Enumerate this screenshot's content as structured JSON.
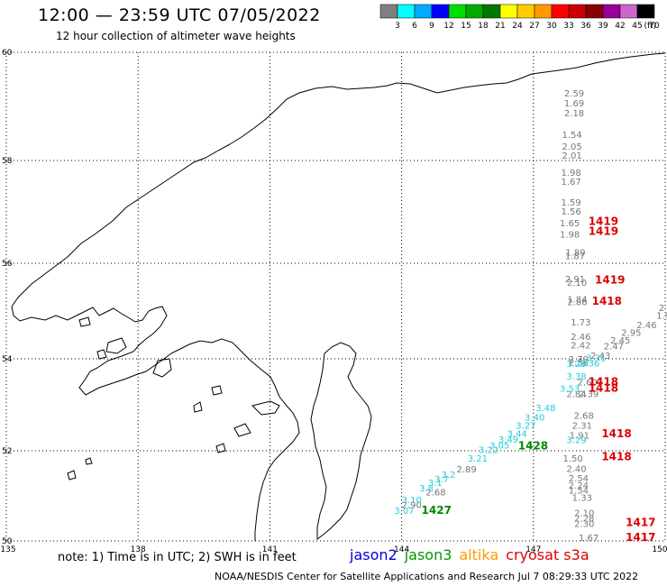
{
  "header": {
    "title": "12:00 — 23:59 UTC 07/05/2022",
    "subtitle": "12 hour collection of altimeter wave heights"
  },
  "legend": {
    "unit": "(ft)",
    "bins": [
      {
        "label": "3",
        "color": "#7f7f7f"
      },
      {
        "label": "6",
        "color": "#00ffff"
      },
      {
        "label": "9",
        "color": "#00aaff"
      },
      {
        "label": "12",
        "color": "#0000ff"
      },
      {
        "label": "15",
        "color": "#00dd00"
      },
      {
        "label": "18",
        "color": "#00aa00"
      },
      {
        "label": "21",
        "color": "#007700"
      },
      {
        "label": "24",
        "color": "#ffff00"
      },
      {
        "label": "27",
        "color": "#ffcc00"
      },
      {
        "label": "30",
        "color": "#ff9900"
      },
      {
        "label": "33",
        "color": "#ff0000"
      },
      {
        "label": "36",
        "color": "#cc0000"
      },
      {
        "label": "39",
        "color": "#880000"
      },
      {
        "label": "42",
        "color": "#990099"
      },
      {
        "label": "45",
        "color": "#cc66cc"
      },
      {
        "label": "70",
        "color": "#000000"
      }
    ]
  },
  "axes": {
    "lon_ticks": [
      "135",
      "138",
      "141",
      "144",
      "147",
      "150"
    ],
    "lat_ticks": [
      "60",
      "58",
      "56",
      "54",
      "52",
      "50"
    ]
  },
  "observations": {
    "cryosat_gray": [
      {
        "v": "2.59",
        "lon": 147.7,
        "lat": 59.18
      },
      {
        "v": "1.69",
        "lon": 147.7,
        "lat": 59.0
      },
      {
        "v": "2.18",
        "lon": 147.7,
        "lat": 58.82
      },
      {
        "v": "1.54",
        "lon": 147.65,
        "lat": 58.42
      },
      {
        "v": "2.05",
        "lon": 147.65,
        "lat": 58.2
      },
      {
        "v": "2.01",
        "lon": 147.65,
        "lat": 58.03
      },
      {
        "v": "1.98",
        "lon": 147.63,
        "lat": 57.7
      },
      {
        "v": "1.67",
        "lon": 147.63,
        "lat": 57.53
      },
      {
        "v": "1.59",
        "lon": 147.63,
        "lat": 57.12
      },
      {
        "v": "1.56",
        "lon": 147.63,
        "lat": 56.95
      },
      {
        "v": "1.65",
        "lon": 147.6,
        "lat": 56.72
      },
      {
        "v": "1.98",
        "lon": 147.6,
        "lat": 56.5
      },
      {
        "v": "1.89",
        "lon": 147.73,
        "lat": 56.15
      },
      {
        "v": "1.87",
        "lon": 147.72,
        "lat": 56.08
      },
      {
        "v": "2.91",
        "lon": 147.72,
        "lat": 55.6
      },
      {
        "v": "2.10",
        "lon": 147.76,
        "lat": 55.53
      },
      {
        "v": "1.84",
        "lon": 147.77,
        "lat": 55.18
      },
      {
        "v": "2.86",
        "lon": 147.77,
        "lat": 55.12
      },
      {
        "v": "1.73",
        "lon": 147.85,
        "lat": 54.7
      },
      {
        "v": "2.46",
        "lon": 147.85,
        "lat": 54.4
      },
      {
        "v": "2.42",
        "lon": 147.85,
        "lat": 54.22
      },
      {
        "v": "2.79",
        "lon": 147.8,
        "lat": 53.92
      },
      {
        "v": "2.58",
        "lon": 147.8,
        "lat": 53.85
      },
      {
        "v": "2.60",
        "lon": 148.0,
        "lat": 53.42
      },
      {
        "v": "2.84",
        "lon": 147.75,
        "lat": 53.17
      },
      {
        "v": "2.39",
        "lon": 148.03,
        "lat": 53.17
      },
      {
        "v": "2.68",
        "lon": 147.92,
        "lat": 52.7
      },
      {
        "v": "2.31",
        "lon": 147.88,
        "lat": 52.48
      },
      {
        "v": "1.91",
        "lon": 147.82,
        "lat": 52.26
      },
      {
        "v": "1.50",
        "lon": 147.67,
        "lat": 51.76
      },
      {
        "v": "2.40",
        "lon": 147.75,
        "lat": 51.53
      },
      {
        "v": "2.54",
        "lon": 147.8,
        "lat": 51.32
      },
      {
        "v": "2.24",
        "lon": 147.8,
        "lat": 51.16
      },
      {
        "v": "1.54",
        "lon": 147.8,
        "lat": 51.05
      },
      {
        "v": "1.33",
        "lon": 147.88,
        "lat": 50.89
      },
      {
        "v": "2.10",
        "lon": 147.93,
        "lat": 50.55
      },
      {
        "v": "2.28",
        "lon": 147.93,
        "lat": 50.43
      },
      {
        "v": "2.30",
        "lon": 147.93,
        "lat": 50.31
      },
      {
        "v": "1.67",
        "lon": 148.03,
        "lat": 49.86
      }
    ],
    "jason3_gray": [
      {
        "v": "2.90",
        "lon": 144.0,
        "lat": 50.73
      },
      {
        "v": "2.68",
        "lon": 144.55,
        "lat": 51.01
      },
      {
        "v": "2.89",
        "lon": 145.25,
        "lat": 51.52
      },
      {
        "v": "2",
        "lon": 149.85,
        "lat": 55.0
      },
      {
        "v": "1.98",
        "lon": 149.8,
        "lat": 54.84
      },
      {
        "v": "2.46",
        "lon": 149.35,
        "lat": 54.64
      },
      {
        "v": "2.95",
        "lon": 149.0,
        "lat": 54.48
      },
      {
        "v": "2.45",
        "lon": 148.75,
        "lat": 54.32
      },
      {
        "v": "2.47",
        "lon": 148.6,
        "lat": 54.2
      },
      {
        "v": "2.43",
        "lon": 148.3,
        "lat": 54.0
      }
    ],
    "jason3_cyan": [
      {
        "v": "3.07",
        "lon": 143.83,
        "lat": 50.6
      },
      {
        "v": "3.10",
        "lon": 144.0,
        "lat": 50.84
      },
      {
        "v": "3.8",
        "lon": 144.4,
        "lat": 51.1
      },
      {
        "v": "3.1",
        "lon": 144.6,
        "lat": 51.22
      },
      {
        "v": "3.7",
        "lon": 144.75,
        "lat": 51.3
      },
      {
        "v": "3.2",
        "lon": 144.9,
        "lat": 51.4
      },
      {
        "v": "3.21",
        "lon": 145.5,
        "lat": 51.76
      },
      {
        "v": "3.22",
        "lon": 145.75,
        "lat": 51.95
      },
      {
        "v": "3.05",
        "lon": 146.0,
        "lat": 52.05
      },
      {
        "v": "3.49",
        "lon": 146.2,
        "lat": 52.18
      },
      {
        "v": "3.44",
        "lon": 146.4,
        "lat": 52.3
      },
      {
        "v": "3.27",
        "lon": 146.6,
        "lat": 52.48
      },
      {
        "v": "3.40",
        "lon": 146.8,
        "lat": 52.66
      },
      {
        "v": "3.48",
        "lon": 147.05,
        "lat": 52.86
      },
      {
        "v": "3.29",
        "lon": 147.75,
        "lat": 52.17
      },
      {
        "v": "3.53",
        "lon": 147.6,
        "lat": 53.28
      },
      {
        "v": "3.38",
        "lon": 147.75,
        "lat": 53.55
      },
      {
        "v": "3.29",
        "lon": 147.75,
        "lat": 53.82
      },
      {
        "v": "3.36",
        "lon": 148.05,
        "lat": 53.83
      },
      {
        "v": "3.31",
        "lon": 148.2,
        "lat": 53.95
      }
    ],
    "cryosat_ids": [
      {
        "v": "1419",
        "lon": 148.25,
        "lat": 56.75
      },
      {
        "v": "1419",
        "lon": 148.25,
        "lat": 56.55
      },
      {
        "v": "1419",
        "lon": 148.4,
        "lat": 55.58
      },
      {
        "v": "1418",
        "lon": 148.33,
        "lat": 55.13
      },
      {
        "v": "1418",
        "lon": 148.25,
        "lat": 53.42
      },
      {
        "v": "1418",
        "lon": 148.25,
        "lat": 53.28
      },
      {
        "v": "1418",
        "lon": 148.55,
        "lat": 52.29
      },
      {
        "v": "1418",
        "lon": 148.55,
        "lat": 51.79
      },
      {
        "v": "1417",
        "lon": 149.1,
        "lat": 50.33
      },
      {
        "v": "1417",
        "lon": 149.1,
        "lat": 49.89
      }
    ],
    "jason3_ids": [
      {
        "v": "1428",
        "lon": 146.65,
        "lat": 52.03
      },
      {
        "v": "1427",
        "lon": 144.45,
        "lat": 50.6
      }
    ]
  },
  "note": "note: 1) Time is in UTC; 2) SWH is in feet",
  "satellites": [
    {
      "name": "jason2",
      "color": "#0000dd"
    },
    {
      "name": "jason3",
      "color": "#009900"
    },
    {
      "name": "altika",
      "color": "#ff9900"
    },
    {
      "name": "cryosat s3a",
      "color": "#dd0000"
    }
  ],
  "footer": "NOAA/NESDIS Center for Satellite Applications and Research    Jul  7 08:29:33 UTC 2022"
}
